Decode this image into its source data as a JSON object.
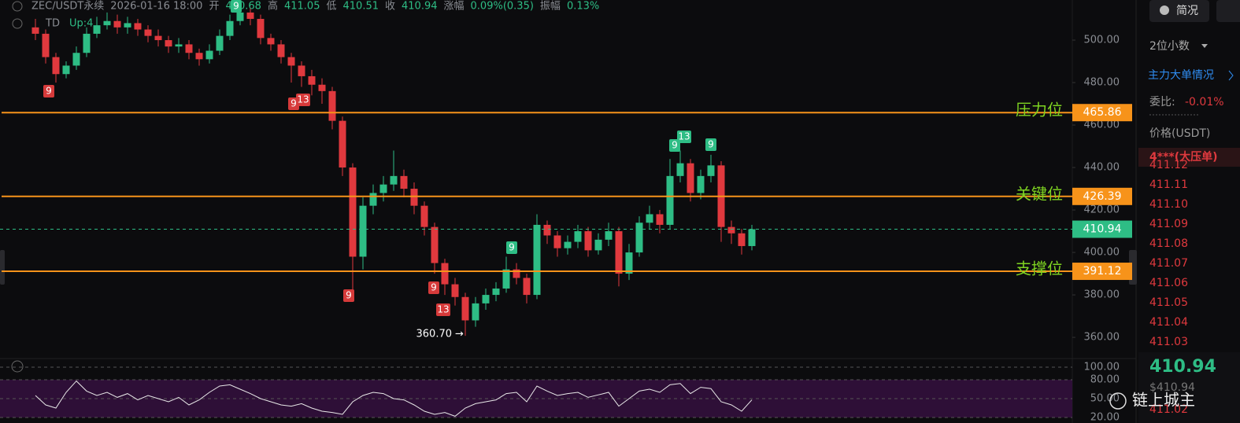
{
  "header": {
    "symbol": "ZEC/USDT永续",
    "time": "2026-01-16 18:00",
    "fields": [
      {
        "label": "开",
        "value": "410.68"
      },
      {
        "label": "高",
        "value": "411.05"
      },
      {
        "label": "低",
        "value": "410.51"
      },
      {
        "label": "收",
        "value": "410.94"
      },
      {
        "label": "涨幅",
        "value": "0.09%(0.35)"
      },
      {
        "label": "振幅",
        "value": "0.13%"
      }
    ],
    "indicator": "TD",
    "indicator_value": "Up:4"
  },
  "chart_data": {
    "type": "candlestick",
    "up_color": "#2ebd85",
    "down_color": "#e0393e",
    "ylim": [
      350.4,
      518.9
    ],
    "yticks": [
      {
        "value": 360,
        "label": "360.00"
      },
      {
        "value": 380,
        "label": "380.00"
      },
      {
        "value": 400,
        "label": "400.00"
      },
      {
        "value": 420,
        "label": "420.00"
      },
      {
        "value": 440,
        "label": "440.00"
      },
      {
        "value": 460,
        "label": "460.00"
      },
      {
        "value": 480,
        "label": "480.00"
      },
      {
        "value": 500,
        "label": "500.00"
      }
    ],
    "open": [
      506,
      503,
      492,
      484,
      488,
      494,
      503,
      507,
      509,
      506,
      508,
      505,
      502,
      500,
      497,
      498,
      494,
      491,
      495,
      502,
      509,
      513,
      510,
      501,
      498,
      492,
      488,
      483,
      479,
      476,
      462,
      440,
      398,
      422,
      428,
      432,
      436,
      430,
      422,
      412,
      395,
      385,
      379,
      368,
      376,
      380,
      383,
      392,
      388,
      380,
      413,
      408,
      402,
      405,
      410,
      401,
      406,
      410,
      390,
      400,
      414,
      418,
      413,
      436,
      442,
      428,
      436,
      441,
      412,
      409,
      403
    ],
    "high": [
      510,
      505,
      494,
      490,
      497,
      506,
      511,
      513,
      512,
      511,
      510,
      507,
      505,
      502,
      501,
      500,
      496,
      498,
      505,
      512,
      516,
      515,
      512,
      503,
      500,
      494,
      490,
      486,
      482,
      478,
      464,
      442,
      426,
      432,
      436,
      448,
      439,
      433,
      424,
      414,
      397,
      388,
      381,
      379,
      383,
      386,
      398,
      395,
      390,
      418,
      415,
      410,
      408,
      413,
      412,
      409,
      414,
      412,
      404,
      417,
      422,
      420,
      444,
      448,
      444,
      439,
      446,
      443,
      415,
      411,
      413
    ],
    "low": [
      500,
      489,
      480,
      482,
      486,
      492,
      501,
      505,
      503,
      503,
      502,
      499,
      497,
      494,
      494,
      491,
      488,
      489,
      493,
      500,
      507,
      507,
      498,
      495,
      489,
      480,
      478,
      474,
      470,
      458,
      436,
      382,
      392,
      418,
      424,
      429,
      426,
      418,
      408,
      390,
      380,
      375,
      360.7,
      365,
      373,
      377,
      381,
      385,
      376,
      378,
      404,
      398,
      399,
      402,
      398,
      399,
      403,
      384,
      387,
      398,
      411,
      409,
      411,
      433,
      424,
      425,
      433,
      405,
      404,
      399,
      401
    ],
    "close": [
      503,
      492,
      484,
      488,
      494,
      503,
      507,
      509,
      506,
      508,
      505,
      502,
      500,
      497,
      498,
      494,
      491,
      495,
      502,
      509,
      513,
      510,
      501,
      498,
      492,
      488,
      483,
      479,
      476,
      462,
      440,
      398,
      422,
      428,
      432,
      436,
      430,
      422,
      412,
      395,
      385,
      379,
      368,
      376,
      380,
      383,
      392,
      388,
      380,
      413,
      408,
      402,
      405,
      410,
      401,
      406,
      410,
      390,
      400,
      414,
      418,
      413,
      436,
      442,
      428,
      436,
      441,
      412,
      409,
      403,
      410.94
    ],
    "levels": [
      {
        "name": "压力位",
        "value": 465.86,
        "color": "#f7931a"
      },
      {
        "name": "关键位",
        "value": 426.39,
        "color": "#f7931a"
      },
      {
        "name": "支撑位",
        "value": 391.12,
        "color": "#f7931a"
      }
    ],
    "last_price": 410.94,
    "last_color": "#2ebd85",
    "low_label": {
      "value": 360.7,
      "label": "360.70"
    },
    "td_marks": [
      {
        "label": 9,
        "color": "#2ebd85"
      },
      {
        "label": 9,
        "color": "#d63a3a"
      },
      {
        "label": 9,
        "color": "#d63a3a"
      },
      {
        "label": 13,
        "color": "#d63a3a"
      },
      {
        "label": 9,
        "color": "#d63a3a"
      },
      {
        "label": 9,
        "color": "#d63a3a"
      },
      {
        "label": 13,
        "color": "#d63a3a"
      },
      {
        "label": 9,
        "color": "#2ebd85"
      },
      {
        "label": 9,
        "color": "#2ebd85"
      },
      {
        "label": 13,
        "color": "#2ebd85"
      },
      {
        "label": 9,
        "color": "#2ebd85"
      }
    ],
    "indicator": {
      "type": "line",
      "color": "#e8e8e8",
      "band_color": "#2e0f37",
      "ylim": [
        11.25,
        108.75
      ],
      "yticks": [
        {
          "value": 20,
          "label": "20.00"
        },
        {
          "value": 50,
          "label": "50.00"
        },
        {
          "value": 80,
          "label": "80.00"
        },
        {
          "value": 100,
          "label": "100.00"
        }
      ],
      "values": [
        55,
        40,
        35,
        60,
        78,
        62,
        55,
        60,
        52,
        58,
        48,
        55,
        50,
        45,
        52,
        40,
        48,
        60,
        70,
        72,
        65,
        58,
        50,
        45,
        40,
        38,
        42,
        35,
        30,
        28,
        25,
        45,
        55,
        60,
        58,
        50,
        48,
        40,
        30,
        25,
        28,
        22,
        35,
        42,
        45,
        48,
        58,
        60,
        45,
        70,
        62,
        55,
        58,
        60,
        52,
        56,
        60,
        38,
        50,
        62,
        65,
        60,
        72,
        74,
        58,
        68,
        66,
        45,
        40,
        30,
        48
      ]
    }
  },
  "sidebar": {
    "button": "简况",
    "decimals": "2位小数",
    "big_orders": "主力大单情况",
    "ratio_label": "委比:",
    "ratio_value": "-0.01%",
    "price_header": "价格(USDT)",
    "big_ask": "4***(大压单)",
    "prices": [
      "411.12",
      "411.11",
      "411.10",
      "411.09",
      "411.08",
      "411.07",
      "411.06",
      "411.05",
      "411.04",
      "411.03"
    ],
    "last": "410.94",
    "last_usd": "$410.94",
    "bottom": "411.02"
  },
  "watermark": "链上城主"
}
